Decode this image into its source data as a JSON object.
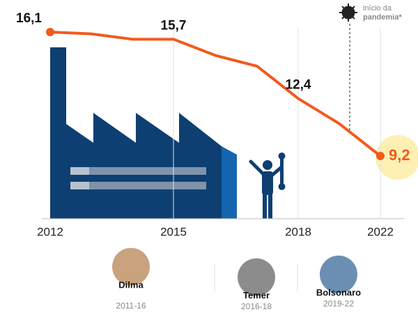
{
  "chart_data": {
    "type": "line",
    "categories": [
      "2012",
      null,
      null,
      "2015",
      null,
      null,
      "2018",
      null,
      "2022"
    ],
    "values": [
      16.1,
      16.0,
      15.7,
      15.7,
      14.8,
      14.2,
      12.4,
      11.0,
      9.2
    ],
    "value_labels": [
      "16,1",
      null,
      null,
      "15,7",
      null,
      null,
      "12,4",
      null,
      "9,2"
    ],
    "color": "#f15a1d",
    "annotation": [
      "início da",
      "pandemia*"
    ],
    "presidents": [
      {
        "name": "Dilma",
        "term": "2011-16"
      },
      {
        "name": "Temer",
        "term": "2016-18"
      },
      {
        "name": "Bolsonaro",
        "term": "2019-22"
      }
    ]
  }
}
